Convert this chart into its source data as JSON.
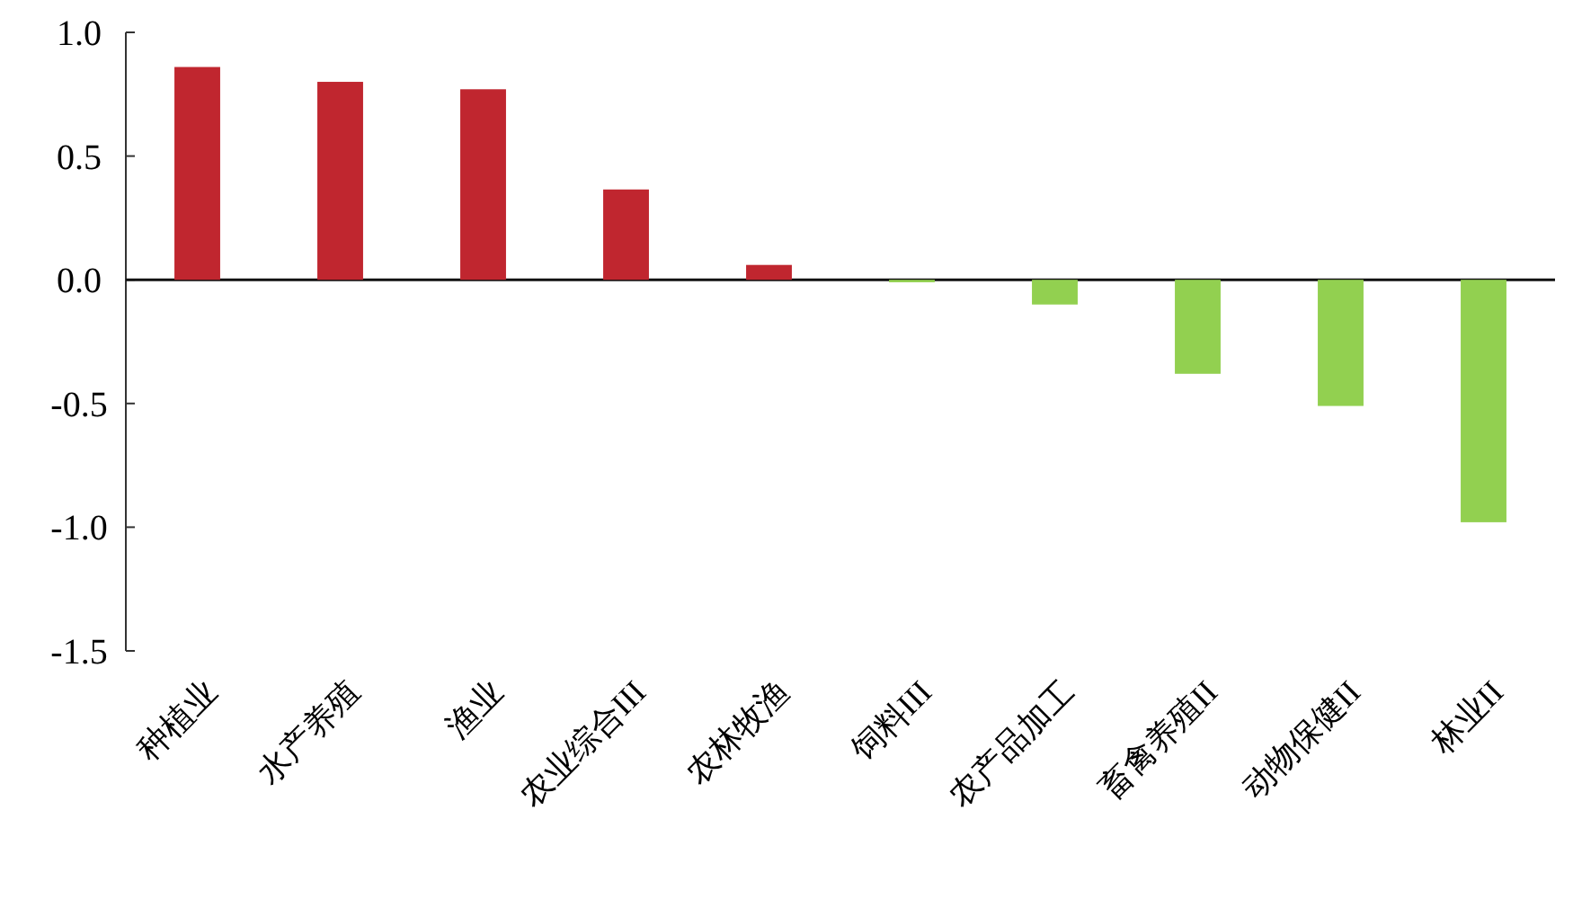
{
  "chart_data": {
    "type": "bar",
    "categories": [
      "种植业",
      "水产养殖",
      "渔业",
      "农业综合III",
      "农林牧渔",
      "饲料III",
      "农产品加工",
      "畜禽养殖II",
      "动物保健II",
      "林业II"
    ],
    "values": [
      0.86,
      0.8,
      0.77,
      0.365,
      0.06,
      -0.01,
      -0.1,
      -0.38,
      -0.51,
      -0.98
    ],
    "colors": [
      "#c0262f",
      "#c0262f",
      "#c0262f",
      "#c0262f",
      "#c0262f",
      "#92d050",
      "#92d050",
      "#92d050",
      "#92d050",
      "#92d050"
    ],
    "ylim": [
      -1.5,
      1.0
    ],
    "yticks": [
      {
        "value": -1.5,
        "label": "-1.5"
      },
      {
        "value": -1.0,
        "label": "-1.0"
      },
      {
        "value": -0.5,
        "label": "-0.5"
      },
      {
        "value": 0,
        "label": "0.0"
      },
      {
        "value": 0.5,
        "label": "0.5"
      },
      {
        "value": 1.0,
        "label": "1.0"
      }
    ]
  }
}
